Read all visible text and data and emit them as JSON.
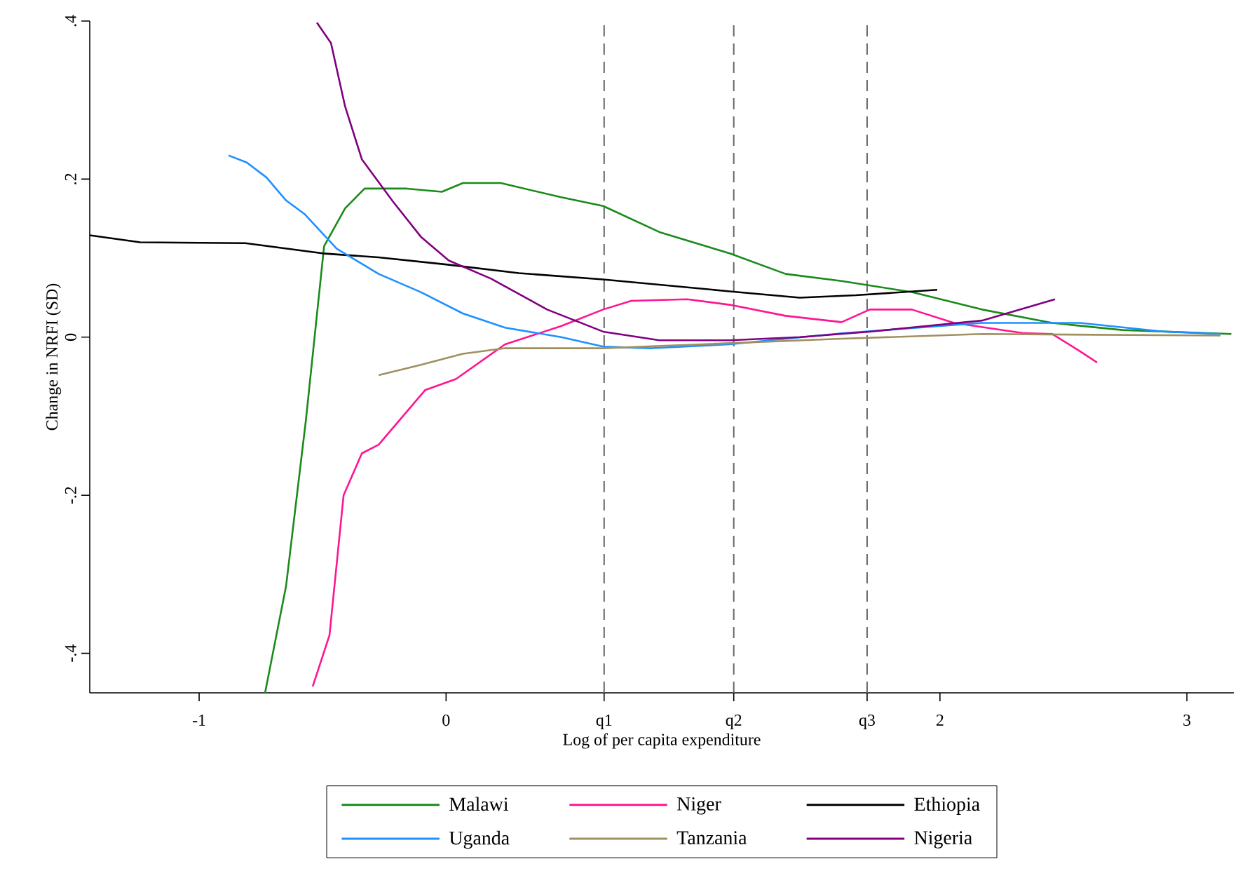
{
  "chart_data": {
    "type": "line",
    "xlabel": "Log of per capita expenditure",
    "ylabel": "Change in NRFI (SD)",
    "xlim": [
      -1.443,
      3.19
    ],
    "ylim": [
      -0.45,
      0.4
    ],
    "xticks": [
      -1,
      0,
      {
        "value": 0.64,
        "label": "q1"
      },
      {
        "value": 1.165,
        "label": "q2"
      },
      {
        "value": 1.705,
        "label": "q3"
      },
      2,
      3
    ],
    "yticks": [
      {
        "value": -0.4,
        "label": "-.4"
      },
      {
        "value": -0.2,
        "label": "-.2"
      },
      0,
      {
        "value": 0.2,
        "label": ".2"
      },
      {
        "value": 0.4,
        "label": ".4"
      }
    ],
    "grid": false,
    "legend": "bottom",
    "marker": "none",
    "line_style": "solid",
    "ref_lines": [
      {
        "axis": "x",
        "value": 0.64,
        "color": "#666666",
        "line_style": "dashed"
      },
      {
        "axis": "x",
        "value": 1.165,
        "color": "#666666",
        "line_style": "dashed"
      },
      {
        "axis": "x",
        "value": 1.705,
        "color": "#666666",
        "line_style": "dashed"
      }
    ],
    "series": [
      {
        "name": "Malawi",
        "color": "#1a8a1a",
        "x": [
          -0.733,
          -0.648,
          -0.568,
          -0.494,
          -0.409,
          -0.33,
          -0.159,
          -0.017,
          0.068,
          0.222,
          0.466,
          0.636,
          0.864,
          1.148,
          1.375,
          1.602,
          1.886,
          2.17,
          2.455,
          2.739,
          3.18
        ],
        "values": [
          -0.45,
          -0.315,
          -0.106,
          0.115,
          0.163,
          0.188,
          0.188,
          0.184,
          0.195,
          0.195,
          0.177,
          0.166,
          0.133,
          0.106,
          0.08,
          0.071,
          0.057,
          0.035,
          0.018,
          0.009,
          0.004
        ]
      },
      {
        "name": "Niger",
        "color": "#ff1493",
        "x": [
          -0.54,
          -0.472,
          -0.415,
          -0.341,
          -0.273,
          -0.085,
          0.04,
          0.239,
          0.466,
          0.636,
          0.75,
          0.977,
          1.148,
          1.375,
          1.602,
          1.716,
          1.886,
          2.057,
          2.341,
          2.455,
          2.568,
          2.636
        ],
        "values": [
          -0.442,
          -0.377,
          -0.2,
          -0.147,
          -0.136,
          -0.067,
          -0.053,
          -0.009,
          0.014,
          0.035,
          0.046,
          0.048,
          0.041,
          0.027,
          0.019,
          0.035,
          0.035,
          0.018,
          0.005,
          0.004,
          -0.018,
          -0.032
        ]
      },
      {
        "name": "Ethiopia",
        "color": "#000000",
        "x": [
          -1.443,
          -1.239,
          -0.813,
          -0.5,
          -0.273,
          0,
          0.295,
          0.636,
          1.148,
          1.432,
          1.659,
          1.989
        ],
        "values": [
          0.129,
          0.12,
          0.119,
          0.106,
          0.101,
          0.092,
          0.081,
          0.073,
          0.058,
          0.05,
          0.053,
          0.06
        ]
      },
      {
        "name": "Uganda",
        "color": "#1e90ff",
        "x": [
          -0.881,
          -0.807,
          -0.727,
          -0.648,
          -0.574,
          -0.443,
          -0.273,
          -0.102,
          0.068,
          0.239,
          0.466,
          0.636,
          0.835,
          1.148,
          1.602,
          2.17,
          2.568,
          2.909,
          3.136
        ],
        "values": [
          0.23,
          0.221,
          0.202,
          0.173,
          0.156,
          0.112,
          0.08,
          0.057,
          0.03,
          0.012,
          0,
          -0.012,
          -0.014,
          -0.009,
          0.005,
          0.018,
          0.018,
          0.007,
          0.004
        ]
      },
      {
        "name": "Tanzania",
        "color": "#a09060",
        "x": [
          -0.273,
          -0.102,
          0.068,
          0.239,
          0.636,
          1.034,
          1.602,
          2.17,
          3.136
        ],
        "values": [
          -0.048,
          -0.035,
          -0.021,
          -0.014,
          -0.014,
          -0.009,
          -0.002,
          0.004,
          0.002
        ]
      },
      {
        "name": "Nigeria",
        "color": "#800080",
        "x": [
          -0.523,
          -0.466,
          -0.409,
          -0.341,
          -0.216,
          -0.102,
          0.011,
          0.182,
          0.409,
          0.636,
          0.864,
          1.148,
          1.432,
          1.716,
          2.17,
          2.369,
          2.466
        ],
        "values": [
          0.398,
          0.372,
          0.292,
          0.225,
          0.172,
          0.127,
          0.097,
          0.074,
          0.035,
          0.007,
          -0.004,
          -0.004,
          0,
          0.007,
          0.021,
          0.039,
          0.048
        ]
      }
    ]
  }
}
